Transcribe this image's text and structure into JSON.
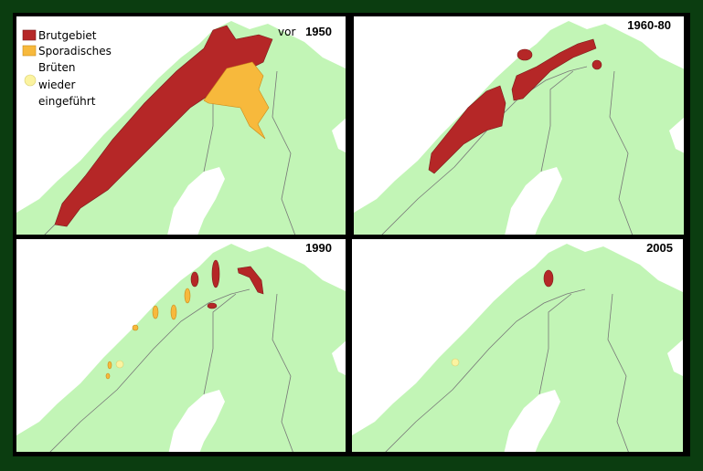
{
  "legend": {
    "items": [
      {
        "lines": [
          "Brutgebiet"
        ]
      },
      {
        "lines": [
          "Sporadisches",
          "Brüten"
        ]
      },
      {
        "lines": [
          "wieder",
          "eingeführt"
        ]
      }
    ]
  },
  "panels": [
    {
      "prefix": "vor",
      "year": "1950"
    },
    {
      "year": "1960-80"
    },
    {
      "year": "1990"
    },
    {
      "year": "2005"
    }
  ]
}
